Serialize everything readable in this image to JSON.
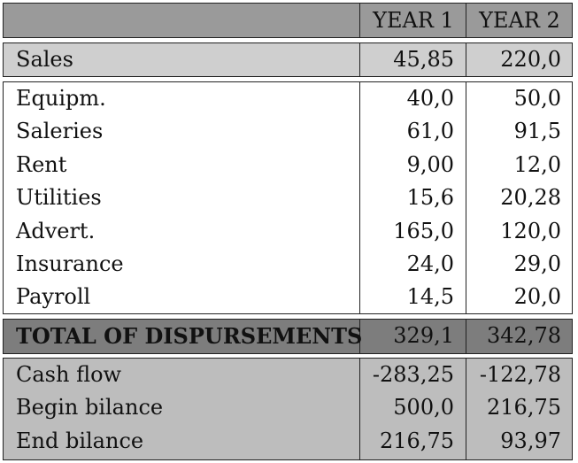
{
  "table": {
    "header": {
      "col1": "YEAR 1",
      "col2": "YEAR 2"
    },
    "sales": {
      "label": "Sales",
      "year1": "45,85",
      "year2": "220,0"
    },
    "expenses": [
      {
        "label": "Equipm.",
        "year1": "40,0",
        "year2": "50,0"
      },
      {
        "label": "Saleries",
        "year1": "61,0",
        "year2": "91,5"
      },
      {
        "label": "Rent",
        "year1": "9,00",
        "year2": "12,0"
      },
      {
        "label": "Utilities",
        "year1": "15,6",
        "year2": "20,28"
      },
      {
        "label": "Advert.",
        "year1": "165,0",
        "year2": "120,0"
      },
      {
        "label": "Insurance",
        "year1": "24,0",
        "year2": "29,0"
      },
      {
        "label": "Payroll",
        "year1": "14,5",
        "year2": "20,0"
      }
    ],
    "total": {
      "label": "TOTAL OF DISPURSEMENTS",
      "year1": "329,1",
      "year2": "342,78"
    },
    "summary": [
      {
        "label": "Cash flow",
        "year1": "-283,25",
        "year2": "-122,78"
      },
      {
        "label": "Begin bilance",
        "year1": "500,0",
        "year2": "216,75"
      },
      {
        "label": "End bilance",
        "year1": "216,75",
        "year2": "93,97"
      }
    ]
  },
  "colors": {
    "header_bg": "#9a9a9a",
    "sales_bg": "#cfcfcf",
    "total_bg": "#7d7d7d",
    "summary_bg": "#bdbdbd",
    "border": "#222222"
  }
}
